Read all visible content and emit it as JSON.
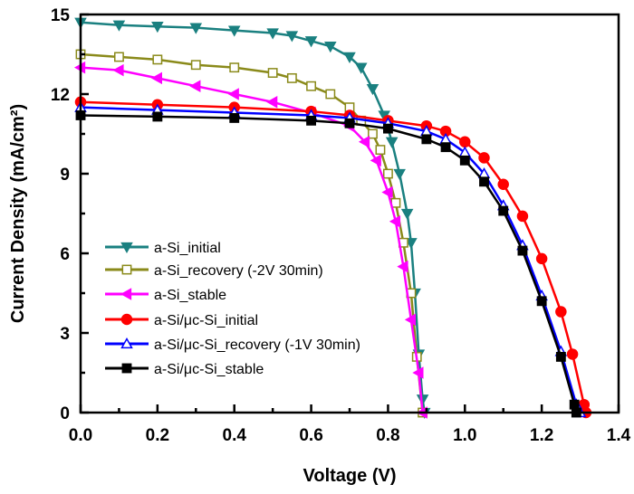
{
  "chart_data": {
    "type": "line",
    "title": "",
    "xlabel": "Voltage (V)",
    "ylabel": "Current Density (mA/cm²)",
    "xlim": [
      0,
      1.4
    ],
    "ylim": [
      0,
      15
    ],
    "xticks": [
      "0.0",
      "0.2",
      "0.4",
      "0.6",
      "0.8",
      "1.0",
      "1.2",
      "1.4"
    ],
    "yticks": [
      "0",
      "3",
      "6",
      "9",
      "12",
      "15"
    ],
    "grid": false,
    "legend_position": "left-bottom",
    "series": [
      {
        "name": "a-Si_initial",
        "color": "#1a8080",
        "marker": "triangle-down",
        "filled": true,
        "x": [
          0,
          0.1,
          0.2,
          0.3,
          0.4,
          0.5,
          0.55,
          0.6,
          0.65,
          0.7,
          0.73,
          0.76,
          0.79,
          0.81,
          0.83,
          0.85,
          0.86,
          0.87,
          0.88,
          0.89,
          0.895
        ],
        "y": [
          14.7,
          14.6,
          14.55,
          14.5,
          14.4,
          14.3,
          14.2,
          14.0,
          13.8,
          13.4,
          13.0,
          12.2,
          11.2,
          10.2,
          9.0,
          7.5,
          6.4,
          4.5,
          2.2,
          0.5,
          0
        ]
      },
      {
        "name": "a-Si_recovery (-2V 30min)",
        "color": "#8a8a1a",
        "marker": "square",
        "filled": false,
        "x": [
          0,
          0.1,
          0.2,
          0.3,
          0.4,
          0.5,
          0.55,
          0.6,
          0.65,
          0.7,
          0.73,
          0.76,
          0.78,
          0.8,
          0.82,
          0.84,
          0.86,
          0.875,
          0.89
        ],
        "y": [
          13.5,
          13.4,
          13.3,
          13.1,
          13.0,
          12.8,
          12.6,
          12.3,
          12.0,
          11.5,
          11.0,
          10.5,
          9.9,
          9.0,
          7.9,
          6.4,
          4.5,
          2.1,
          0
        ]
      },
      {
        "name": "a-Si_stable",
        "color": "#ff00ff",
        "marker": "triangle-left",
        "filled": true,
        "x": [
          0,
          0.1,
          0.2,
          0.3,
          0.4,
          0.5,
          0.6,
          0.7,
          0.74,
          0.77,
          0.8,
          0.82,
          0.84,
          0.86,
          0.88,
          0.89
        ],
        "y": [
          13.0,
          12.9,
          12.6,
          12.3,
          12.0,
          11.7,
          11.3,
          10.8,
          10.2,
          9.5,
          8.3,
          7.2,
          5.5,
          3.5,
          1.5,
          0
        ]
      },
      {
        "name": "a-Si/μc-Si_initial",
        "color": "#ff0000",
        "marker": "circle",
        "filled": true,
        "x": [
          0,
          0.2,
          0.4,
          0.6,
          0.7,
          0.8,
          0.9,
          0.95,
          1.0,
          1.05,
          1.1,
          1.15,
          1.2,
          1.25,
          1.28,
          1.31,
          1.315
        ],
        "y": [
          11.7,
          11.6,
          11.5,
          11.35,
          11.2,
          11.0,
          10.8,
          10.6,
          10.2,
          9.6,
          8.6,
          7.4,
          5.8,
          3.8,
          2.2,
          0.3,
          0
        ]
      },
      {
        "name": "a-Si/μc-Si_recovery (-1V 30min)",
        "color": "#0000ff",
        "marker": "triangle-up",
        "filled": false,
        "x": [
          0,
          0.2,
          0.4,
          0.6,
          0.7,
          0.8,
          0.9,
          0.95,
          1.0,
          1.05,
          1.1,
          1.15,
          1.2,
          1.25,
          1.29,
          1.3
        ],
        "y": [
          11.5,
          11.4,
          11.3,
          11.2,
          11.1,
          10.9,
          10.6,
          10.3,
          9.8,
          9.0,
          7.8,
          6.3,
          4.4,
          2.3,
          0.3,
          0
        ]
      },
      {
        "name": "a-Si/μc-Si_stable",
        "color": "#000000",
        "marker": "square",
        "filled": true,
        "x": [
          0,
          0.2,
          0.4,
          0.6,
          0.7,
          0.8,
          0.9,
          0.95,
          1.0,
          1.05,
          1.1,
          1.15,
          1.2,
          1.25,
          1.285,
          1.29
        ],
        "y": [
          11.2,
          11.15,
          11.1,
          11.0,
          10.9,
          10.7,
          10.3,
          10.0,
          9.5,
          8.7,
          7.6,
          6.1,
          4.2,
          2.1,
          0.3,
          0
        ]
      }
    ]
  }
}
